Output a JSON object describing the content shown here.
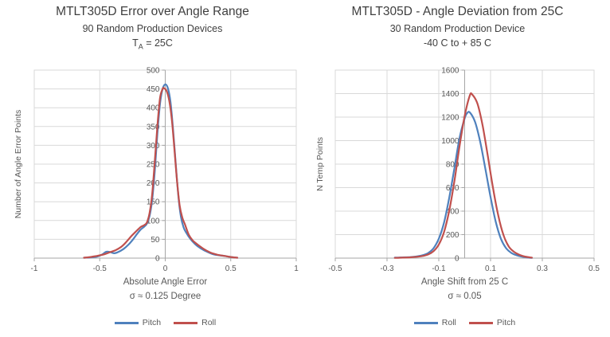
{
  "colors": {
    "grid": "#d9d9d9",
    "axis": "#a6a6a6",
    "blue": "#4f81bd",
    "red": "#c0504d",
    "title_text": "#3f3f3f",
    "label_text": "#595959"
  },
  "chart_data": [
    {
      "type": "line",
      "title": "MTLT305D Error over Angle Range",
      "subtitle": "90 Random Production Devices",
      "condition": {
        "main": "T",
        "sub": "A",
        "rest": " = 25C"
      },
      "ylabel": "Number of Angle Error Points",
      "xlabel": "Absolute Angle Error",
      "sigma_note": "σ ≈ 0.125 Degree",
      "xlim": [
        -1,
        1
      ],
      "ylim": [
        0,
        500
      ],
      "x_ticks": [
        "-1",
        "-0.5",
        "0",
        "0.5",
        "1"
      ],
      "x_tick_values": [
        -1,
        -0.5,
        0,
        0.5,
        1
      ],
      "y_ticks": [
        "0",
        "50",
        "100",
        "150",
        "200",
        "250",
        "300",
        "350",
        "400",
        "450",
        "500"
      ],
      "y_tick_values": [
        0,
        50,
        100,
        150,
        200,
        250,
        300,
        350,
        400,
        450,
        500
      ],
      "grid": true,
      "legend_position": "bottom",
      "series": [
        {
          "name": "Pitch",
          "color": "#4f81bd",
          "points": [
            [
              -0.62,
              1
            ],
            [
              -0.57,
              2
            ],
            [
              -0.52,
              4
            ],
            [
              -0.48,
              10
            ],
            [
              -0.45,
              17
            ],
            [
              -0.42,
              16
            ],
            [
              -0.39,
              13
            ],
            [
              -0.36,
              16
            ],
            [
              -0.32,
              24
            ],
            [
              -0.28,
              36
            ],
            [
              -0.25,
              48
            ],
            [
              -0.22,
              62
            ],
            [
              -0.19,
              75
            ],
            [
              -0.16,
              84
            ],
            [
              -0.14,
              92
            ],
            [
              -0.12,
              112
            ],
            [
              -0.1,
              155
            ],
            [
              -0.08,
              230
            ],
            [
              -0.06,
              330
            ],
            [
              -0.04,
              410
            ],
            [
              -0.02,
              450
            ],
            [
              0,
              462
            ],
            [
              0.02,
              452
            ],
            [
              0.04,
              415
            ],
            [
              0.06,
              340
            ],
            [
              0.08,
              250
            ],
            [
              0.1,
              165
            ],
            [
              0.12,
              110
            ],
            [
              0.14,
              82
            ],
            [
              0.16,
              68
            ],
            [
              0.19,
              52
            ],
            [
              0.22,
              40
            ],
            [
              0.25,
              31
            ],
            [
              0.28,
              24
            ],
            [
              0.32,
              17
            ],
            [
              0.36,
              11
            ],
            [
              0.4,
              8
            ],
            [
              0.45,
              6
            ],
            [
              0.5,
              3
            ],
            [
              0.55,
              1
            ]
          ]
        },
        {
          "name": "Roll",
          "color": "#c0504d",
          "points": [
            [
              -0.62,
              1
            ],
            [
              -0.57,
              3
            ],
            [
              -0.52,
              6
            ],
            [
              -0.48,
              9
            ],
            [
              -0.45,
              12
            ],
            [
              -0.42,
              16
            ],
            [
              -0.38,
              21
            ],
            [
              -0.34,
              29
            ],
            [
              -0.3,
              42
            ],
            [
              -0.26,
              58
            ],
            [
              -0.22,
              72
            ],
            [
              -0.19,
              82
            ],
            [
              -0.16,
              88
            ],
            [
              -0.14,
              95
            ],
            [
              -0.12,
              120
            ],
            [
              -0.1,
              170
            ],
            [
              -0.08,
              255
            ],
            [
              -0.06,
              350
            ],
            [
              -0.04,
              425
            ],
            [
              -0.02,
              450
            ],
            [
              -0.01,
              452
            ],
            [
              0.01,
              445
            ],
            [
              0.03,
              420
            ],
            [
              0.05,
              370
            ],
            [
              0.07,
              290
            ],
            [
              0.09,
              205
            ],
            [
              0.11,
              140
            ],
            [
              0.13,
              108
            ],
            [
              0.15,
              90
            ],
            [
              0.18,
              62
            ],
            [
              0.21,
              47
            ],
            [
              0.24,
              38
            ],
            [
              0.27,
              30
            ],
            [
              0.31,
              21
            ],
            [
              0.35,
              14
            ],
            [
              0.4,
              9
            ],
            [
              0.45,
              6
            ],
            [
              0.5,
              3
            ],
            [
              0.55,
              1
            ]
          ]
        }
      ]
    },
    {
      "type": "line",
      "title": "MTLT305D - Angle Deviation from 25C",
      "subtitle": "30 Random Production Device",
      "condition": {
        "main": "-40 C to + 85 C",
        "sub": "",
        "rest": ""
      },
      "ylabel": "N Temp Points",
      "xlabel": "Angle Shift from 25 C",
      "sigma_note": "σ ≈ 0.05",
      "xlim": [
        -0.5,
        0.5
      ],
      "ylim": [
        0,
        1600
      ],
      "x_ticks": [
        "-0.5",
        "-0.3",
        "-0.1",
        "0.1",
        "0.3",
        "0.5"
      ],
      "x_tick_values": [
        -0.5,
        -0.3,
        -0.1,
        0.1,
        0.3,
        0.5
      ],
      "y_ticks": [
        "0",
        "200",
        "400",
        "600",
        "800",
        "1000",
        "1200",
        "1400",
        "1600"
      ],
      "y_tick_values": [
        0,
        200,
        400,
        600,
        800,
        1000,
        1200,
        1400,
        1600
      ],
      "grid": true,
      "legend_position": "bottom",
      "series": [
        {
          "name": "Roll",
          "color": "#4f81bd",
          "points": [
            [
              -0.27,
              4
            ],
            [
              -0.24,
              6
            ],
            [
              -0.21,
              9
            ],
            [
              -0.18,
              16
            ],
            [
              -0.16,
              26
            ],
            [
              -0.14,
              45
            ],
            [
              -0.12,
              85
            ],
            [
              -0.1,
              165
            ],
            [
              -0.08,
              300
            ],
            [
              -0.06,
              510
            ],
            [
              -0.04,
              760
            ],
            [
              -0.02,
              1020
            ],
            [
              0,
              1190
            ],
            [
              0.01,
              1235
            ],
            [
              0.02,
              1240
            ],
            [
              0.04,
              1160
            ],
            [
              0.06,
              990
            ],
            [
              0.08,
              760
            ],
            [
              0.1,
              520
            ],
            [
              0.12,
              310
            ],
            [
              0.14,
              165
            ],
            [
              0.16,
              85
            ],
            [
              0.18,
              45
            ],
            [
              0.2,
              25
            ],
            [
              0.22,
              13
            ],
            [
              0.24,
              6
            ],
            [
              0.26,
              2
            ]
          ]
        },
        {
          "name": "Pitch",
          "color": "#c0504d",
          "points": [
            [
              -0.27,
              2
            ],
            [
              -0.24,
              4
            ],
            [
              -0.21,
              7
            ],
            [
              -0.18,
              12
            ],
            [
              -0.16,
              19
            ],
            [
              -0.14,
              32
            ],
            [
              -0.12,
              60
            ],
            [
              -0.1,
              115
            ],
            [
              -0.08,
              220
            ],
            [
              -0.06,
              400
            ],
            [
              -0.04,
              650
            ],
            [
              -0.02,
              950
            ],
            [
              0,
              1210
            ],
            [
              0.02,
              1385
            ],
            [
              0.03,
              1390
            ],
            [
              0.05,
              1310
            ],
            [
              0.07,
              1120
            ],
            [
              0.09,
              860
            ],
            [
              0.11,
              590
            ],
            [
              0.13,
              360
            ],
            [
              0.15,
              195
            ],
            [
              0.17,
              100
            ],
            [
              0.19,
              55
            ],
            [
              0.21,
              30
            ],
            [
              0.23,
              15
            ],
            [
              0.25,
              7
            ],
            [
              0.26,
              4
            ]
          ]
        }
      ]
    }
  ]
}
